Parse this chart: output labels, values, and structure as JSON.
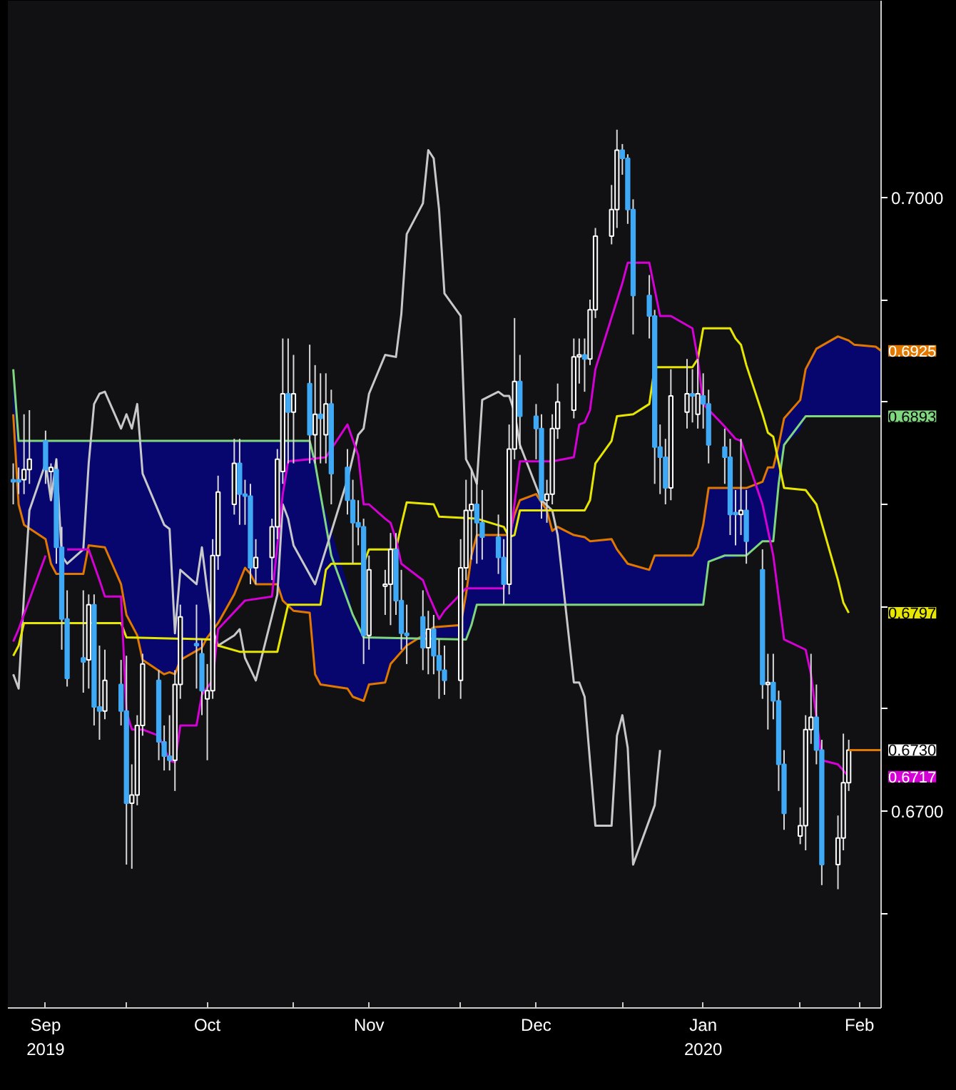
{
  "chart_data": {
    "type": "candlestick",
    "x": [
      "2019-09-10",
      "2019-09-11",
      "2019-09-12",
      "2019-09-13",
      "2019-09-16",
      "2019-09-17",
      "2019-09-18",
      "2019-09-19",
      "2019-09-20",
      "2019-09-23",
      "2019-09-24",
      "2019-09-25",
      "2019-09-26",
      "2019-09-27",
      "2019-09-30",
      "2019-10-01",
      "2019-10-02",
      "2019-10-03",
      "2019-10-04",
      "2019-10-07",
      "2019-10-08",
      "2019-10-09",
      "2019-10-10",
      "2019-10-11",
      "2019-10-14",
      "2019-10-15",
      "2019-10-16",
      "2019-10-17",
      "2019-10-18",
      "2019-10-21",
      "2019-10-22",
      "2019-10-23",
      "2019-10-24",
      "2019-10-25",
      "2019-10-28",
      "2019-10-29",
      "2019-10-30",
      "2019-10-31",
      "2019-11-01",
      "2019-11-04",
      "2019-11-05",
      "2019-11-06",
      "2019-11-07",
      "2019-11-08",
      "2019-11-11",
      "2019-11-12",
      "2019-11-13",
      "2019-11-14",
      "2019-11-15",
      "2019-11-18",
      "2019-11-19",
      "2019-11-20",
      "2019-11-21",
      "2019-11-22",
      "2019-11-25",
      "2019-11-26",
      "2019-11-27",
      "2019-11-28",
      "2019-11-29",
      "2019-12-02",
      "2019-12-03",
      "2019-12-04",
      "2019-12-05",
      "2019-12-06",
      "2019-12-09",
      "2019-12-10",
      "2019-12-11",
      "2019-12-12",
      "2019-12-13",
      "2019-12-16",
      "2019-12-17",
      "2019-12-18",
      "2019-12-19",
      "2019-12-20",
      "2019-12-23",
      "2019-12-24",
      "2019-12-25",
      "2019-12-26",
      "2019-12-27",
      "2019-12-30",
      "2019-12-31",
      "2020-01-01",
      "2020-01-02",
      "2020-01-03",
      "2020-01-06",
      "2020-01-07",
      "2020-01-08",
      "2020-01-09",
      "2020-01-10",
      "2020-01-13",
      "2020-01-14",
      "2020-01-15",
      "2020-01-16",
      "2020-01-17",
      "2020-01-20",
      "2020-01-21",
      "2020-01-22",
      "2020-01-23",
      "2020-01-24",
      "2020-01-27",
      "2020-01-28",
      "2020-01-29",
      "2020-01-30",
      "2020-01-31",
      "2020-02-03",
      "2020-02-04",
      "2020-02-05",
      "2020-02-06",
      "2020-02-07",
      "2020-02-10",
      "2020-02-11",
      "2020-02-12"
    ],
    "ohlc": [
      [
        0.6862,
        0.687,
        0.685,
        0.6861
      ],
      [
        0.6862,
        0.6868,
        0.6855,
        0.6861
      ],
      [
        0.6862,
        0.6894,
        0.6855,
        0.6867
      ],
      [
        0.6867,
        0.6896,
        0.686,
        0.6872
      ],
      [
        0.6881,
        0.6886,
        0.686,
        0.6867
      ],
      [
        0.6866,
        0.687,
        0.6855,
        0.6868
      ],
      [
        0.6867,
        0.6872,
        0.6821,
        0.6829
      ],
      [
        0.6829,
        0.6839,
        0.6779,
        0.6794
      ],
      [
        0.6794,
        0.6808,
        0.6761,
        0.6765
      ],
      [
        0.6775,
        0.6808,
        0.6758,
        0.6773
      ],
      [
        0.6774,
        0.6806,
        0.676,
        0.6801
      ],
      [
        0.6801,
        0.6806,
        0.6742,
        0.6751
      ],
      [
        0.6751,
        0.6781,
        0.6735,
        0.6749
      ],
      [
        0.6749,
        0.6779,
        0.6745,
        0.6764
      ],
      [
        0.6762,
        0.6774,
        0.6742,
        0.6749
      ],
      [
        0.6749,
        0.6776,
        0.6674,
        0.6704
      ],
      [
        0.6704,
        0.6723,
        0.6672,
        0.6708
      ],
      [
        0.6708,
        0.6747,
        0.6703,
        0.6742
      ],
      [
        0.6742,
        0.6777,
        0.6737,
        0.6772
      ],
      [
        0.6764,
        0.6769,
        0.6725,
        0.6734
      ],
      [
        0.6734,
        0.6742,
        0.672,
        0.6727
      ],
      [
        0.6727,
        0.6747,
        0.672,
        0.6725
      ],
      [
        0.6725,
        0.6769,
        0.671,
        0.6762
      ],
      [
        0.6762,
        0.6801,
        0.6755,
        0.6795
      ],
      [
        0.6782,
        0.6801,
        0.676,
        0.6781
      ],
      [
        0.6777,
        0.6784,
        0.6747,
        0.6759
      ],
      [
        0.6755,
        0.6772,
        0.6725,
        0.6759
      ],
      [
        0.6759,
        0.6833,
        0.6755,
        0.6825
      ],
      [
        0.6825,
        0.6864,
        0.6818,
        0.6856
      ],
      [
        0.685,
        0.6882,
        0.6845,
        0.687
      ],
      [
        0.687,
        0.6882,
        0.684,
        0.6855
      ],
      [
        0.6855,
        0.6862,
        0.684,
        0.6854
      ],
      [
        0.6854,
        0.686,
        0.6811,
        0.6819
      ],
      [
        0.6819,
        0.6833,
        0.6811,
        0.6824
      ],
      [
        0.6824,
        0.6843,
        0.6813,
        0.6839
      ],
      [
        0.6839,
        0.6877,
        0.6833,
        0.6872
      ],
      [
        0.6866,
        0.6931,
        0.686,
        0.6904
      ],
      [
        0.6904,
        0.6931,
        0.687,
        0.6895
      ],
      [
        0.6895,
        0.6923,
        0.687,
        0.6904
      ],
      [
        0.6909,
        0.6928,
        0.687,
        0.6884
      ],
      [
        0.6884,
        0.6918,
        0.687,
        0.6894
      ],
      [
        0.6894,
        0.6914,
        0.687,
        0.6892
      ],
      [
        0.6884,
        0.6914,
        0.687,
        0.6899
      ],
      [
        0.6899,
        0.6906,
        0.685,
        0.6865
      ],
      [
        0.6868,
        0.6877,
        0.6845,
        0.6852
      ],
      [
        0.6852,
        0.6862,
        0.6821,
        0.6841
      ],
      [
        0.6841,
        0.6852,
        0.683,
        0.6839
      ],
      [
        0.6839,
        0.6843,
        0.6772,
        0.6786
      ],
      [
        0.6786,
        0.6825,
        0.6779,
        0.6818
      ],
      [
        0.681,
        0.6818,
        0.6796,
        0.6811
      ],
      [
        0.6811,
        0.6836,
        0.6791,
        0.6828
      ],
      [
        0.6828,
        0.6836,
        0.6796,
        0.6803
      ],
      [
        0.6803,
        0.6818,
        0.6779,
        0.6787
      ],
      [
        0.6787,
        0.6801,
        0.6772,
        0.6786
      ],
      [
        0.6795,
        0.6808,
        0.6769,
        0.678
      ],
      [
        0.678,
        0.6798,
        0.6767,
        0.6789
      ],
      [
        0.6789,
        0.6796,
        0.6767,
        0.6776
      ],
      [
        0.6776,
        0.6784,
        0.6755,
        0.6769
      ],
      [
        0.6769,
        0.6781,
        0.6757,
        0.6764
      ],
      [
        0.6764,
        0.6833,
        0.6755,
        0.6819
      ],
      [
        0.6819,
        0.6862,
        0.6813,
        0.6847
      ],
      [
        0.6847,
        0.6867,
        0.6823,
        0.685
      ],
      [
        0.685,
        0.6862,
        0.6821,
        0.6841
      ],
      [
        0.6841,
        0.6857,
        0.6823,
        0.6834
      ],
      [
        0.6834,
        0.6845,
        0.6816,
        0.6824
      ],
      [
        0.6824,
        0.6833,
        0.6801,
        0.6811
      ],
      [
        0.6811,
        0.6889,
        0.6806,
        0.6877
      ],
      [
        0.6877,
        0.6941,
        0.6872,
        0.691
      ],
      [
        0.691,
        0.6923,
        0.6877,
        0.6893
      ],
      [
        0.6893,
        0.6899,
        0.6872,
        0.6887
      ],
      [
        0.6887,
        0.6894,
        0.6843,
        0.6852
      ],
      [
        0.6852,
        0.6862,
        0.6841,
        0.6855
      ],
      [
        0.6855,
        0.6894,
        0.685,
        0.6887
      ],
      [
        0.6887,
        0.6909,
        0.6882,
        0.69
      ],
      [
        0.6896,
        0.6931,
        0.6892,
        0.6922
      ],
      [
        0.6922,
        0.6931,
        0.6909,
        0.6923
      ],
      [
        0.6923,
        0.6931,
        0.6905,
        0.6921
      ],
      [
        0.6921,
        0.695,
        0.6918,
        0.6945
      ],
      [
        0.6945,
        0.6985,
        0.6941,
        0.6981
      ],
      [
        0.6981,
        0.7006,
        0.6977,
        0.6994
      ],
      [
        0.6994,
        0.7033,
        0.6985,
        0.7023
      ],
      [
        0.7023,
        0.7026,
        0.7011,
        0.7019
      ],
      [
        0.7019,
        0.7021,
        0.6987,
        0.6994
      ],
      [
        0.6994,
        0.6999,
        0.6933,
        0.6952
      ],
      [
        0.6952,
        0.6962,
        0.6931,
        0.6942
      ],
      [
        0.6942,
        0.6945,
        0.686,
        0.6878
      ],
      [
        0.6878,
        0.6889,
        0.6855,
        0.6873
      ],
      [
        0.6873,
        0.6882,
        0.685,
        0.6858
      ],
      [
        0.6858,
        0.6916,
        0.6852,
        0.6903
      ],
      [
        0.6895,
        0.6921,
        0.6887,
        0.6904
      ],
      [
        0.6904,
        0.6916,
        0.689,
        0.6903
      ],
      [
        0.6894,
        0.6921,
        0.6887,
        0.6904
      ],
      [
        0.6903,
        0.6914,
        0.6887,
        0.6899
      ],
      [
        0.6899,
        0.6906,
        0.687,
        0.6879
      ],
      [
        0.6878,
        0.6887,
        0.686,
        0.6873
      ],
      [
        0.6873,
        0.6882,
        0.6835,
        0.6845
      ],
      [
        0.6846,
        0.6857,
        0.683,
        0.6845
      ],
      [
        0.6845,
        0.6882,
        0.6835,
        0.6847
      ],
      [
        0.6847,
        0.6857,
        0.6821,
        0.6832
      ],
      [
        0.6818,
        0.6828,
        0.6755,
        0.6762
      ],
      [
        0.6762,
        0.6777,
        0.674,
        0.6763
      ],
      [
        0.6763,
        0.6777,
        0.6745,
        0.6754
      ],
      [
        0.6754,
        0.6759,
        0.671,
        0.6723
      ],
      [
        0.6723,
        0.673,
        0.6691,
        0.6699
      ],
      [
        0.6688,
        0.6702,
        0.6684,
        0.6693
      ],
      [
        0.6693,
        0.6747,
        0.6681,
        0.674
      ],
      [
        0.674,
        0.6777,
        0.6733,
        0.6746
      ],
      [
        0.6746,
        0.6762,
        0.6723,
        0.673
      ],
      [
        0.673,
        0.6735,
        0.6664,
        0.6674
      ],
      [
        0.6674,
        0.6698,
        0.6662,
        0.6687
      ],
      [
        0.6687,
        0.6738,
        0.6681,
        0.6714
      ],
      [
        0.6714,
        0.6735,
        0.671,
        0.673
      ]
    ],
    "colors": [
      "#3fa9f5",
      "#3fa9f5",
      "#ffffff",
      "#ffffff",
      "#3fa9f5",
      "#ffffff",
      "#3fa9f5",
      "#3fa9f5",
      "#3fa9f5",
      "#3fa9f5",
      "#ffffff",
      "#3fa9f5",
      "#3fa9f5",
      "#ffffff",
      "#3fa9f5",
      "#3fa9f5",
      "#ffffff",
      "#ffffff",
      "#ffffff",
      "#3fa9f5",
      "#3fa9f5",
      "#3fa9f5",
      "#ffffff",
      "#ffffff",
      "#3fa9f5",
      "#3fa9f5",
      "#ffffff",
      "#ffffff",
      "#ffffff",
      "#ffffff",
      "#3fa9f5",
      "#3fa9f5",
      "#3fa9f5",
      "#ffffff",
      "#ffffff",
      "#ffffff",
      "#ffffff",
      "#3fa9f5",
      "#ffffff",
      "#3fa9f5",
      "#ffffff",
      "#3fa9f5",
      "#ffffff",
      "#3fa9f5",
      "#3fa9f5",
      "#3fa9f5",
      "#3fa9f5",
      "#3fa9f5",
      "#ffffff",
      "#ffffff",
      "#ffffff",
      "#3fa9f5",
      "#3fa9f5",
      "#3fa9f5",
      "#3fa9f5",
      "#ffffff",
      "#3fa9f5",
      "#3fa9f5",
      "#3fa9f5",
      "#ffffff",
      "#ffffff",
      "#ffffff",
      "#3fa9f5",
      "#3fa9f5",
      "#3fa9f5",
      "#3fa9f5",
      "#ffffff",
      "#ffffff",
      "#3fa9f5",
      "#3fa9f5",
      "#3fa9f5",
      "#ffffff",
      "#ffffff",
      "#ffffff",
      "#ffffff",
      "#ffffff",
      "#3fa9f5",
      "#ffffff",
      "#ffffff",
      "#ffffff",
      "#ffffff",
      "#3fa9f5",
      "#3fa9f5",
      "#3fa9f5",
      "#3fa9f5",
      "#3fa9f5",
      "#3fa9f5",
      "#3fa9f5",
      "#ffffff",
      "#ffffff",
      "#3fa9f5",
      "#ffffff",
      "#3fa9f5",
      "#3fa9f5",
      "#3fa9f5",
      "#3fa9f5",
      "#3fa9f5",
      "#ffffff",
      "#3fa9f5",
      "#3fa9f5",
      "#ffffff",
      "#3fa9f5",
      "#3fa9f5",
      "#3fa9f5",
      "#ffffff",
      "#ffffff",
      "#ffffff",
      "#3fa9f5",
      "#3fa9f5",
      "#ffffff",
      "#ffffff",
      "#ffffff"
    ],
    "series": [
      {
        "type": "line",
        "color": "#e07800",
        "x": [
          "2019-09-10",
          "2019-09-11",
          "2019-09-12",
          "2019-09-16",
          "2019-09-17",
          "2019-09-18",
          "2019-09-23",
          "2019-09-24",
          "2019-09-27",
          "2019-09-30",
          "2019-10-01",
          "2019-10-03",
          "2019-10-04",
          "2019-10-08",
          "2019-10-09",
          "2019-10-10",
          "2019-10-11",
          "2019-10-15",
          "2019-10-16",
          "2019-10-18",
          "2019-10-21",
          "2019-10-23",
          "2019-10-24",
          "2019-10-25",
          "2019-10-29",
          "2019-10-30",
          "2019-11-01",
          "2019-11-04",
          "2019-11-05",
          "2019-11-06",
          "2019-11-11",
          "2019-11-12",
          "2019-11-14",
          "2019-11-15",
          "2019-11-18",
          "2019-11-19",
          "2019-11-20",
          "2019-11-22",
          "2019-11-25",
          "2019-11-27",
          "2019-12-02",
          "2019-12-03",
          "2019-12-04",
          "2019-12-05",
          "2019-12-11",
          "2019-12-12",
          "2019-12-13",
          "2019-12-16",
          "2019-12-17",
          "2019-12-18",
          "2019-12-19",
          "2019-12-20",
          "2019-12-23",
          "2019-12-25",
          "2019-12-26",
          "2019-12-30",
          "2019-12-31",
          "2020-01-02",
          "2020-01-06",
          "2020-01-07",
          "2020-01-14",
          "2020-01-15",
          "2020-01-16",
          "2020-01-17",
          "2020-01-24",
          "2020-01-27",
          "2020-01-28",
          "2020-01-29",
          "2020-01-30",
          "2020-01-31",
          "2020-02-03",
          "2020-02-04",
          "2020-02-06",
          "2020-02-10",
          "2020-02-12",
          "2020-02-13",
          "2020-02-17",
          "2020-02-18"
        ],
        "values": [
          0.6894,
          0.685,
          0.684,
          0.6833,
          0.6821,
          0.6816,
          0.6816,
          0.683,
          0.6829,
          0.6811,
          0.6796,
          0.6786,
          0.6774,
          0.6767,
          0.6768,
          0.6767,
          0.6774,
          0.678,
          0.6785,
          0.6792,
          0.6806,
          0.6819,
          0.6816,
          0.6811,
          0.6811,
          0.6803,
          0.6798,
          0.6797,
          0.6767,
          0.6762,
          0.676,
          0.6756,
          0.6754,
          0.6762,
          0.6763,
          0.6772,
          0.6775,
          0.6781,
          0.6786,
          0.679,
          0.6791,
          0.6806,
          0.6825,
          0.6835,
          0.6835,
          0.6845,
          0.6852,
          0.6855,
          0.6851,
          0.6847,
          0.6837,
          0.6839,
          0.6835,
          0.6834,
          0.6832,
          0.6833,
          0.6828,
          0.6821,
          0.6818,
          0.6825,
          0.6825,
          0.6829,
          0.684,
          0.6858,
          0.6858,
          0.6861,
          0.6868,
          0.6868,
          0.6879,
          0.6892,
          0.6901,
          0.6916,
          0.6926,
          0.6932,
          0.693,
          0.6928,
          0.6927,
          0.6925
        ],
        "lower": [
          0.6916,
          0.6881,
          0.6881,
          0.6881,
          0.6881,
          0.6881,
          0.6881,
          0.6881,
          0.6881,
          0.6881,
          0.6881,
          0.6881,
          0.6881,
          0.6881,
          0.6881,
          0.6881,
          0.6881,
          0.6881,
          0.6881,
          0.6881,
          0.6881,
          0.6881,
          0.6881,
          0.6881,
          0.6881,
          0.6881,
          0.6881,
          0.6881,
          0.687,
          0.6855,
          0.6811,
          0.6796,
          0.6785,
          0.6785,
          0.6785,
          0.6785,
          0.6785,
          0.6785,
          0.6785,
          0.6785,
          0.6785,
          0.6784,
          0.6791,
          0.6801,
          0.6801,
          0.6801,
          0.6801,
          0.6801,
          0.6801,
          0.6801,
          0.6801,
          0.6801,
          0.6801,
          0.6801,
          0.6801,
          0.6801,
          0.6801,
          0.6801,
          0.6801,
          0.6801,
          0.6801,
          0.6801,
          0.6801,
          0.6822,
          0.6825,
          0.6832,
          0.6832,
          0.6832,
          0.686,
          0.6879,
          0.6886,
          0.6893,
          0.6893,
          0.6893,
          0.6893,
          0.6893,
          0.6893,
          0.6893
        ],
        "upper": [
          0.6894,
          0.685,
          0.684,
          0.6833,
          0.6821,
          0.6816,
          0.6816,
          0.683,
          0.6829,
          0.6811,
          0.6796,
          0.6786,
          0.6774,
          0.6767,
          0.6768,
          0.6767,
          0.6774,
          0.678,
          0.6785,
          0.6792,
          0.6806,
          0.6819,
          0.6816,
          0.6811,
          0.6811,
          0.6803,
          0.6798,
          0.6797,
          0.6767,
          0.6762,
          0.676,
          0.6756,
          0.6754,
          0.6762,
          0.6763,
          0.6772,
          0.6775,
          0.6781,
          0.6786,
          0.679,
          0.6791,
          0.6806,
          0.6825,
          0.6835,
          0.6835,
          0.6845,
          0.6852,
          0.6855,
          0.6851,
          0.6847,
          0.6837,
          0.6839,
          0.6835,
          0.6834,
          0.6832,
          0.6833,
          0.6828,
          0.6821,
          0.6818,
          0.6825,
          0.6825,
          0.6829,
          0.684,
          0.6858,
          0.6858,
          0.6861,
          0.6868,
          0.6868,
          0.6879,
          0.6892,
          0.6901,
          0.6916,
          0.6926,
          0.6932,
          0.693,
          0.6928,
          0.6927,
          0.6925
        ]
      },
      {
        "type": "line",
        "color": "#7fd67f",
        "x": [
          "2019-09-10",
          "2019-09-11",
          "2019-11-04",
          "2019-11-05",
          "2019-11-06",
          "2019-11-08",
          "2019-11-12",
          "2019-11-14",
          "2019-12-03",
          "2019-12-04",
          "2019-12-05",
          "2020-01-16",
          "2020-01-17",
          "2020-01-20",
          "2020-01-24",
          "2020-01-27",
          "2020-01-29",
          "2020-01-30",
          "2020-01-31",
          "2020-02-04",
          "2020-02-18"
        ],
        "values": [
          0.6916,
          0.6881,
          0.6881,
          0.687,
          0.6855,
          0.6825,
          0.6796,
          0.6785,
          0.6784,
          0.6791,
          0.6801,
          0.6801,
          0.6822,
          0.6825,
          0.6825,
          0.6832,
          0.6832,
          0.686,
          0.6879,
          0.6893,
          0.6893
        ]
      },
      {
        "type": "line",
        "color": "#c8c8c8",
        "x": [
          "2019-09-10",
          "2019-09-11",
          "2019-09-12",
          "2019-09-13",
          "2019-09-16",
          "2019-09-17",
          "2019-09-18",
          "2019-09-19",
          "2019-09-20",
          "2019-09-23",
          "2019-09-24",
          "2019-09-25",
          "2019-09-26",
          "2019-09-27",
          "2019-09-30",
          "2019-10-01",
          "2019-10-02",
          "2019-10-03",
          "2019-10-04",
          "2019-10-08",
          "2019-10-09",
          "2019-10-10",
          "2019-10-11",
          "2019-10-14",
          "2019-10-15",
          "2019-10-16",
          "2019-10-17",
          "2019-10-18",
          "2019-10-21",
          "2019-10-22",
          "2019-10-23",
          "2019-10-25",
          "2019-10-29",
          "2019-10-30",
          "2019-10-31",
          "2019-11-01",
          "2019-11-05",
          "2019-11-11",
          "2019-11-13",
          "2019-11-14",
          "2019-11-15",
          "2019-11-18",
          "2019-11-20",
          "2019-11-21",
          "2019-11-22",
          "2019-11-25",
          "2019-11-26",
          "2019-11-27",
          "2019-11-28",
          "2019-11-29",
          "2019-12-02",
          "2019-12-03",
          "2019-12-04",
          "2019-12-05",
          "2019-12-06",
          "2019-12-09",
          "2019-12-10",
          "2019-12-11",
          "2019-12-12",
          "2019-12-13",
          "2019-12-17",
          "2019-12-19",
          "2019-12-20",
          "2019-12-23",
          "2019-12-24",
          "2019-12-25",
          "2019-12-27",
          "2019-12-30",
          "2019-12-31",
          "2020-01-01",
          "2020-01-02",
          "2020-01-03",
          "2020-01-07",
          "2020-01-08"
        ],
        "values": [
          0.6767,
          0.676,
          0.6806,
          0.6847,
          0.687,
          0.6852,
          0.6872,
          0.6825,
          0.6821,
          0.6828,
          0.687,
          0.6899,
          0.6904,
          0.6905,
          0.6887,
          0.6894,
          0.6887,
          0.6899,
          0.6865,
          0.684,
          0.6838,
          0.6787,
          0.6818,
          0.6811,
          0.6829,
          0.6808,
          0.6789,
          0.6781,
          0.6786,
          0.6789,
          0.6775,
          0.6764,
          0.6806,
          0.685,
          0.6843,
          0.683,
          0.6811,
          0.6862,
          0.6884,
          0.6887,
          0.6904,
          0.6923,
          0.6922,
          0.6943,
          0.6982,
          0.6997,
          0.7023,
          0.7019,
          0.6994,
          0.6953,
          0.6942,
          0.6872,
          0.6867,
          0.686,
          0.6901,
          0.6905,
          0.6903,
          0.6903,
          0.6895,
          0.6879,
          0.6852,
          0.6847,
          0.6835,
          0.6763,
          0.6763,
          0.6756,
          0.6693,
          0.6693,
          0.6737,
          0.6747,
          0.6731,
          0.6674,
          0.6703,
          0.673
        ]
      },
      {
        "type": "line",
        "color": "#e6e600",
        "x": [
          "2019-09-10",
          "2019-09-11",
          "2019-09-12",
          "2019-09-30",
          "2019-10-01",
          "2019-10-17",
          "2019-10-18",
          "2019-10-22",
          "2019-10-29",
          "2019-10-31",
          "2019-11-06",
          "2019-11-07",
          "2019-11-08",
          "2019-11-14",
          "2019-11-15",
          "2019-11-20",
          "2019-11-21",
          "2019-11-22",
          "2019-11-27",
          "2019-11-28",
          "2019-12-05",
          "2019-12-10",
          "2019-12-11",
          "2019-12-12",
          "2019-12-13",
          "2019-12-25",
          "2019-12-26",
          "2019-12-27",
          "2019-12-30",
          "2019-12-31",
          "2020-01-03",
          "2020-01-06",
          "2020-01-07",
          "2020-01-14",
          "2020-01-15",
          "2020-01-16",
          "2020-01-21",
          "2020-01-22",
          "2020-01-23",
          "2020-01-24",
          "2020-01-27",
          "2020-01-28",
          "2020-01-29",
          "2020-01-31",
          "2020-02-04",
          "2020-02-06",
          "2020-02-10",
          "2020-02-11",
          "2020-02-12"
        ],
        "values": [
          0.6776,
          0.6781,
          0.6792,
          0.6792,
          0.6785,
          0.6784,
          0.6781,
          0.6778,
          0.6778,
          0.6801,
          0.6801,
          0.6818,
          0.6821,
          0.6821,
          0.6828,
          0.6828,
          0.684,
          0.6851,
          0.685,
          0.6844,
          0.6843,
          0.6839,
          0.6834,
          0.6835,
          0.6847,
          0.6847,
          0.6852,
          0.687,
          0.6881,
          0.6893,
          0.6894,
          0.6899,
          0.6917,
          0.6917,
          0.6921,
          0.6936,
          0.6936,
          0.6931,
          0.6928,
          0.6918,
          0.6894,
          0.6885,
          0.6883,
          0.6858,
          0.6857,
          0.685,
          0.6813,
          0.6802,
          0.6797
        ]
      },
      {
        "type": "line",
        "color": "#d400d4",
        "x": [
          "2019-09-10",
          "2019-09-11",
          "2019-09-16",
          "2019-09-18",
          "2019-09-20",
          "2019-09-24",
          "2019-09-26",
          "2019-09-27",
          "2019-09-30",
          "2019-10-01",
          "2019-10-02",
          "2019-10-04",
          "2019-10-07",
          "2019-10-09",
          "2019-10-10",
          "2019-10-11",
          "2019-10-14",
          "2019-10-15",
          "2019-10-17",
          "2019-10-18",
          "2019-10-23",
          "2019-10-28",
          "2019-10-29",
          "2019-10-30",
          "2019-10-31",
          "2019-11-04",
          "2019-11-07",
          "2019-11-11",
          "2019-11-13",
          "2019-11-14",
          "2019-11-15",
          "2019-11-18",
          "2019-11-19",
          "2019-11-20",
          "2019-11-21",
          "2019-11-25",
          "2019-11-26",
          "2019-11-28",
          "2019-11-29",
          "2019-12-03",
          "2019-12-10",
          "2019-12-13",
          "2019-12-19",
          "2019-12-23",
          "2019-12-24",
          "2019-12-25",
          "2019-12-26",
          "2019-12-27",
          "2020-01-01",
          "2020-01-02",
          "2020-01-06",
          "2020-01-08",
          "2020-01-10",
          "2020-01-14",
          "2020-01-15",
          "2020-01-16",
          "2020-01-20",
          "2020-01-22",
          "2020-01-23",
          "2020-01-27",
          "2020-01-29",
          "2020-01-31",
          "2020-02-04",
          "2020-02-05",
          "2020-02-07",
          "2020-02-10",
          "2020-02-12"
        ],
        "values": [
          0.6783,
          0.6789,
          0.6825,
          null,
          0.6828,
          0.6828,
          0.6813,
          0.6805,
          0.6805,
          0.6749,
          0.674,
          0.674,
          0.6737,
          0.6725,
          0.6724,
          0.6742,
          0.6742,
          0.6757,
          0.6764,
          0.6789,
          0.6803,
          0.6805,
          0.683,
          0.6855,
          0.6871,
          0.6872,
          0.6873,
          0.6889,
          0.6874,
          0.685,
          0.685,
          0.6843,
          0.6841,
          0.6833,
          0.6821,
          0.6813,
          0.6806,
          0.6794,
          0.6798,
          0.6809,
          0.6809,
          0.6871,
          0.6871,
          0.6873,
          0.6889,
          0.689,
          0.6896,
          0.6916,
          0.6958,
          0.6968,
          0.6968,
          0.6942,
          0.6942,
          0.6936,
          0.6921,
          0.6899,
          0.6888,
          0.6882,
          0.6881,
          0.685,
          0.6825,
          0.6784,
          0.6779,
          0.6767,
          0.6725,
          0.6723,
          0.6717
        ]
      }
    ],
    "annotations": [
      {
        "text": "0.6925",
        "x": "2020-02-18",
        "y": 0.6925
      },
      {
        "text": "0.6893",
        "x": "2020-02-18",
        "y": 0.6893
      },
      {
        "text": "0.6797",
        "x": "2020-02-12",
        "y": 0.6797
      },
      {
        "text": "0.6730",
        "x": "2020-02-12",
        "y": 0.673
      },
      {
        "text": "0.6717",
        "x": "2020-02-12",
        "y": 0.6717
      }
    ],
    "xlim": [
      "2019-09-09",
      "2020-02-18"
    ],
    "xticks": [
      {
        "value": "2019-09-16",
        "label": "Sep\n2019"
      },
      {
        "value": "2019-10-01",
        "label": null
      },
      {
        "value": "2019-10-16",
        "label": "Oct"
      },
      {
        "value": "2019-11-01",
        "label": null
      },
      {
        "value": "2019-11-15",
        "label": "Nov"
      },
      {
        "value": "2019-12-02",
        "label": null
      },
      {
        "value": "2019-12-16",
        "label": "Dec"
      },
      {
        "value": "2020-01-01",
        "label": null
      },
      {
        "value": "2020-01-16",
        "label": "Jan\n2020"
      },
      {
        "value": "2020-02-03",
        "label": null
      },
      {
        "value": "2020-02-14",
        "label": "Feb"
      }
    ],
    "ylim": [
      0.6604,
      0.7096
    ],
    "yticks": [
      {
        "value": 0.665,
        "label": null
      },
      {
        "value": 0.67,
        "label": "0.6700"
      },
      {
        "value": 0.675,
        "label": null
      },
      {
        "value": 0.68,
        "label": null
      },
      {
        "value": 0.685,
        "label": null
      },
      {
        "value": 0.69,
        "label": null
      },
      {
        "value": 0.695,
        "label": null
      },
      {
        "value": 0.7,
        "label": "0.7000"
      }
    ]
  }
}
